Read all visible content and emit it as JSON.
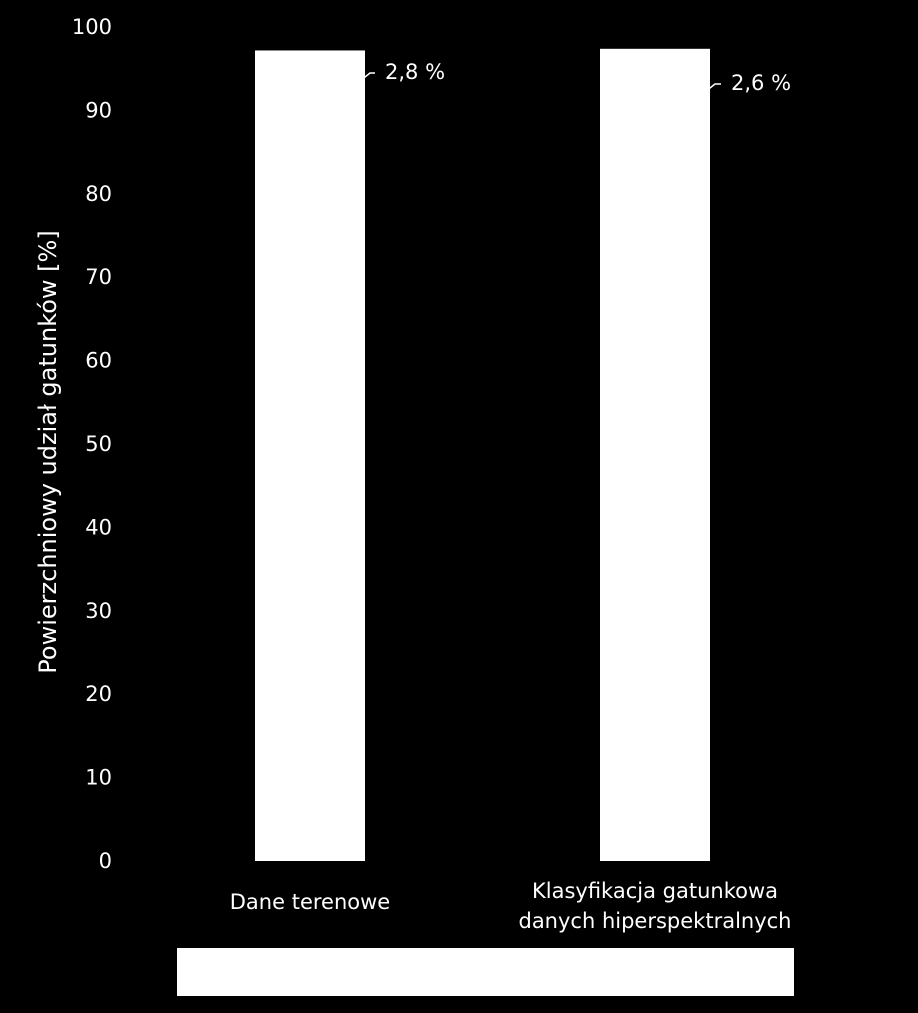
{
  "chart_data": {
    "type": "bar",
    "stacked": true,
    "categories": [
      "Dane terenowe",
      "Klasyfikacja gatunkowa\ndanych hiperspektralnych"
    ],
    "ylabel": "Powierzchniowy udział gatunków [%]",
    "xlabel": "",
    "ylim": [
      0,
      100
    ],
    "yticks": [
      0,
      10,
      20,
      30,
      40,
      50,
      60,
      70,
      80,
      90,
      100
    ],
    "grid": false,
    "series": [
      {
        "values": [
          97.2,
          97.4
        ],
        "color": "#ffffff"
      },
      {
        "values": [
          2.8,
          2.6
        ],
        "color": "#000000"
      }
    ],
    "annotations": [
      "2,8 %",
      "2,6 %"
    ],
    "legend": {
      "placement": "bottom",
      "entries": []
    }
  },
  "colors": {
    "background": "#000000",
    "text": "#ffffff",
    "bar": "#ffffff",
    "legend_box": "#ffffff"
  }
}
